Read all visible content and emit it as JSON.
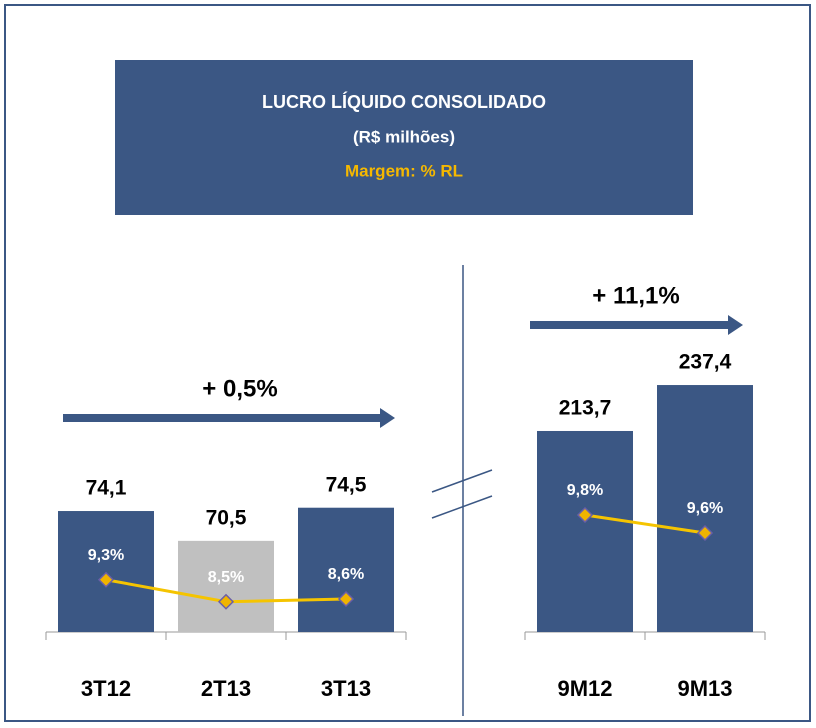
{
  "chart_data": [
    {
      "type": "bar",
      "title": "LUCRO LÍQUIDO CONSOLIDADO",
      "subtitle": "(R$ milhões)",
      "annotation": "+ 0,5%",
      "categories": [
        "3T12",
        "2T13",
        "3T13"
      ],
      "series": [
        {
          "values": [
            74.1,
            70.5,
            74.5
          ],
          "value_labels": [
            "74,1",
            "70,5",
            "74,5"
          ],
          "colors": [
            "#3b5784",
            "#c0c0c0",
            "#3b5784"
          ]
        },
        {
          "name": "Margem: % RL",
          "type": "line",
          "axis": "y2",
          "color": "#f5c400",
          "values": [
            9.3,
            8.5,
            8.6
          ],
          "value_labels": [
            "9,3%",
            "8,5%",
            "8,6%"
          ]
        }
      ],
      "ylim": [
        59.5,
        77
      ],
      "y2lim": [
        7.4,
        10
      ]
    },
    {
      "type": "bar",
      "annotation": "+ 11,1%",
      "categories": [
        "9M12",
        "9M13"
      ],
      "series": [
        {
          "values": [
            213.7,
            237.4
          ],
          "value_labels": [
            "213,7",
            "237,4"
          ],
          "colors": [
            "#3b5784",
            "#3b5784"
          ]
        },
        {
          "type": "line",
          "axis": "y2",
          "color": "#f5c400",
          "values": [
            9.8,
            9.6
          ],
          "value_labels": [
            "9,8%",
            "9,6%"
          ]
        }
      ],
      "ylim": [
        110,
        240
      ],
      "y2lim": [
        8.5,
        10
      ]
    }
  ]
}
